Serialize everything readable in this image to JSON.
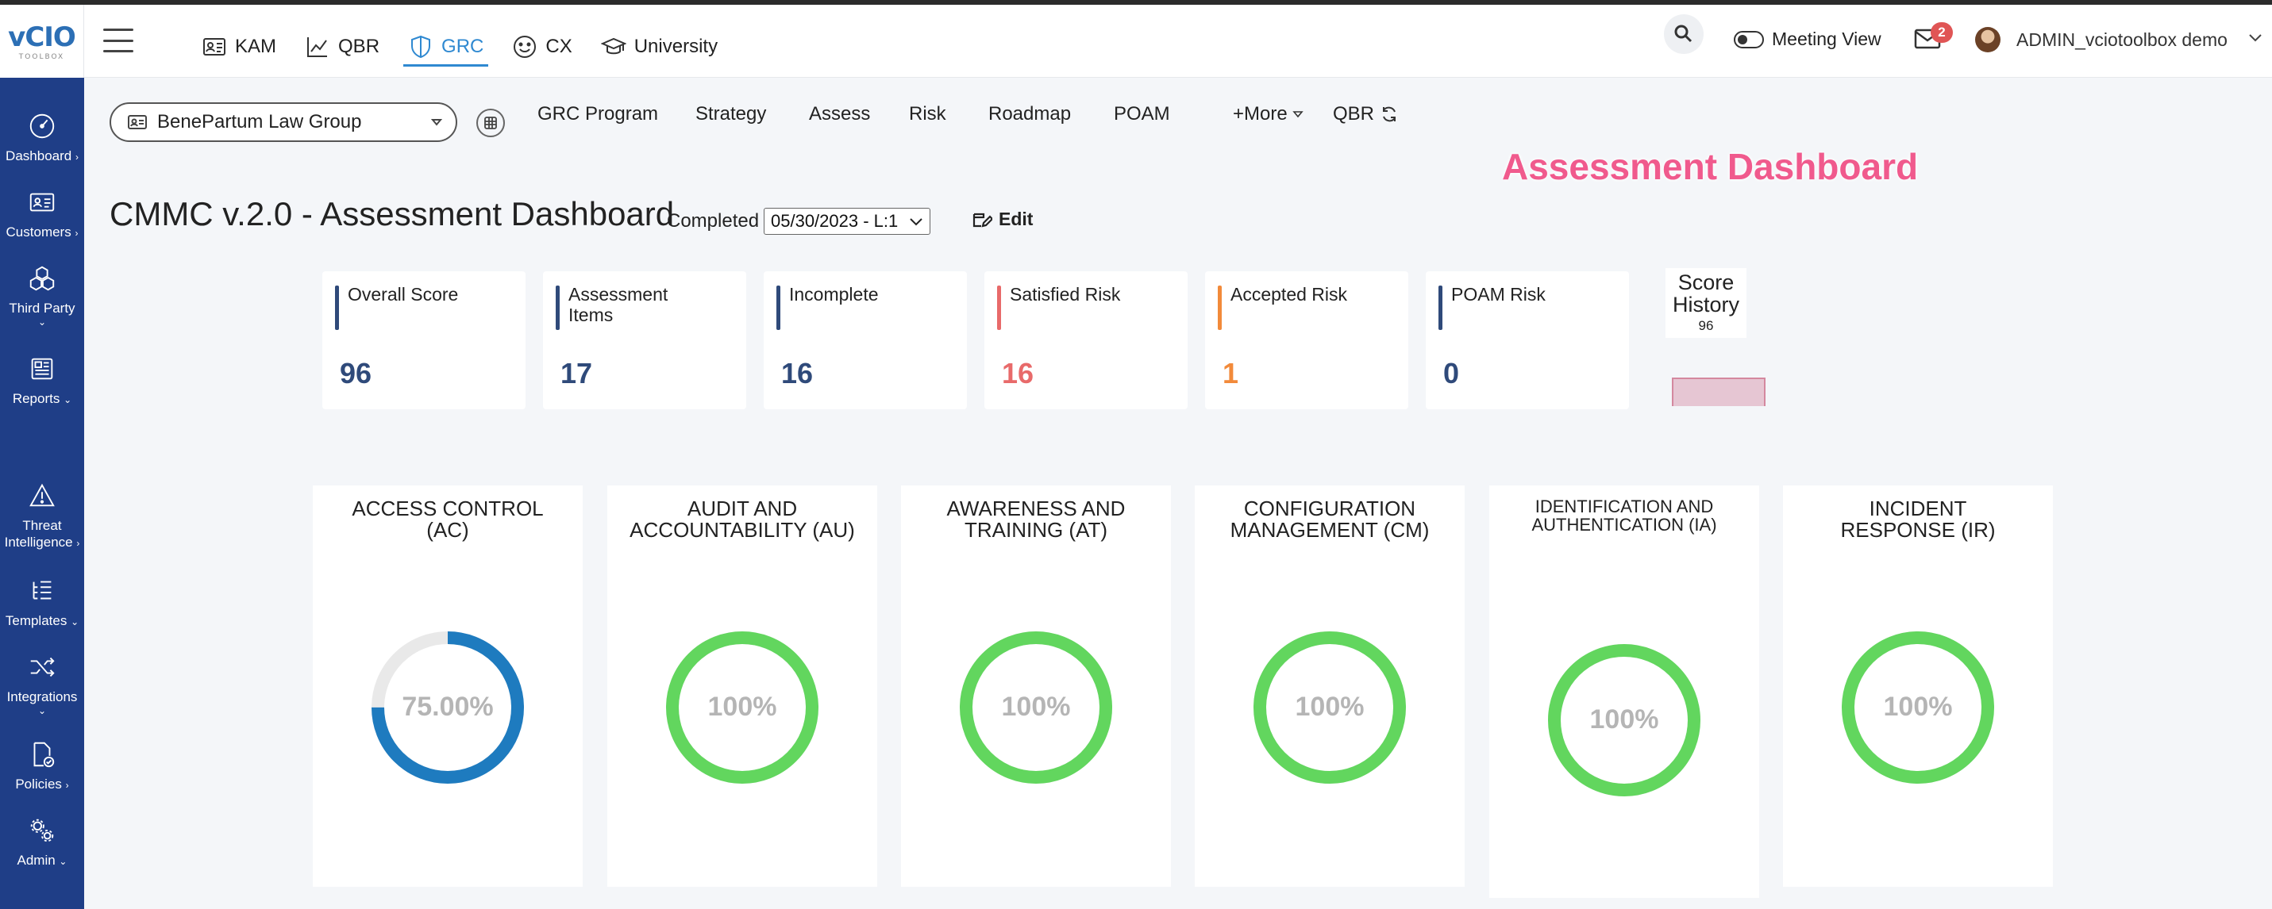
{
  "app": {
    "logo_text": "vCIO",
    "logo_sub": "TOOLBOX"
  },
  "sidebar": {
    "items": [
      {
        "label": "Dashboard",
        "chev": "›",
        "icon": "dashboard-gauge-icon"
      },
      {
        "label": "Customers",
        "chev": "›",
        "icon": "id-card-icon"
      },
      {
        "label": "Third Party",
        "chev": "⌄",
        "icon": "cubes-icon"
      },
      {
        "label": "Reports",
        "chev": "⌄",
        "icon": "newspaper-icon"
      },
      {
        "label": "Threat\nIntelligence",
        "chev": "›",
        "icon": "warning-triangle-icon"
      },
      {
        "label": "Templates",
        "chev": "⌄",
        "icon": "list-tree-icon"
      },
      {
        "label": "Integrations",
        "chev": "⌄",
        "icon": "shuffle-icon"
      },
      {
        "label": "Policies",
        "chev": "›",
        "icon": "policy-check-icon"
      },
      {
        "label": "Admin",
        "chev": "⌄",
        "icon": "gears-icon"
      }
    ]
  },
  "topnav": {
    "items": [
      {
        "label": "KAM",
        "icon": "id-card-icon",
        "active": false
      },
      {
        "label": "QBR",
        "icon": "line-chart-icon",
        "active": false
      },
      {
        "label": "GRC",
        "icon": "shield-icon",
        "active": true
      },
      {
        "label": "CX",
        "icon": "smile-icon",
        "active": false
      },
      {
        "label": "University",
        "icon": "graduation-cap-icon",
        "active": false
      }
    ],
    "meeting_view": "Meeting View",
    "mail_count": "2",
    "user": "ADMIN_vciotoolbox demo"
  },
  "subnav": {
    "company": "BenePartum Law Group",
    "items": [
      "GRC Program",
      "Strategy",
      "Assess",
      "Risk",
      "Roadmap",
      "POAM"
    ],
    "more": "+More",
    "qbr": "QBR"
  },
  "watermark": "Assessment Dashboard",
  "page": {
    "title": "CMMC v.2.0 - Assessment Dashboard",
    "completed_label": "Completed",
    "completed_value": "05/30/2023 - L:1",
    "edit_label": "Edit"
  },
  "stats": [
    {
      "label": "Overall Score",
      "value": "96",
      "color": "#2f4a7a"
    },
    {
      "label": "Assessment Items",
      "value": "17",
      "color": "#2f4a7a"
    },
    {
      "label": "Incomplete",
      "value": "16",
      "color": "#2f4a7a"
    },
    {
      "label": "Satisfied Risk",
      "value": "16",
      "color": "#e86a6a"
    },
    {
      "label": "Accepted Risk",
      "value": "1",
      "color": "#f28a3a"
    },
    {
      "label": "POAM Risk",
      "value": "0",
      "color": "#2f4a7a"
    }
  ],
  "score_history": {
    "title": "Score History",
    "value": "96",
    "bar_value": 96
  },
  "domains": [
    {
      "title": "ACCESS CONTROL (AC)",
      "percent_label": "75.00%",
      "percent": 75,
      "color": "#1e7bbf"
    },
    {
      "title": "AUDIT AND ACCOUNTABILITY (AU)",
      "percent_label": "100%",
      "percent": 100,
      "color": "#62d65e"
    },
    {
      "title": "AWARENESS AND TRAINING (AT)",
      "percent_label": "100%",
      "percent": 100,
      "color": "#62d65e"
    },
    {
      "title": "CONFIGURATION MANAGEMENT (CM)",
      "percent_label": "100%",
      "percent": 100,
      "color": "#62d65e"
    },
    {
      "title": "IDENTIFICATION AND AUTHENTICATION (IA)",
      "percent_label": "100%",
      "percent": 100,
      "color": "#62d65e"
    },
    {
      "title": "INCIDENT RESPONSE (IR)",
      "percent_label": "100%",
      "percent": 100,
      "color": "#62d65e"
    }
  ]
}
